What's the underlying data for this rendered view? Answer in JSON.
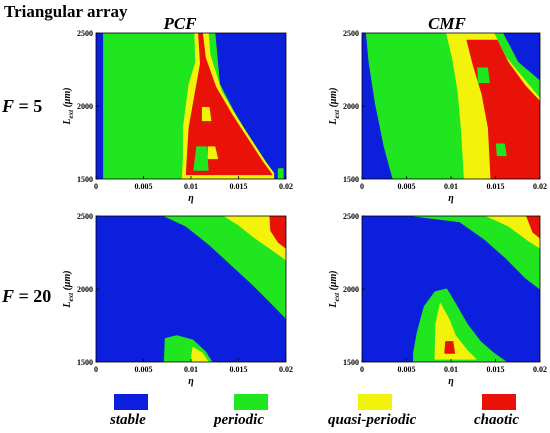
{
  "header": {
    "title": "Triangular array"
  },
  "columns": [
    "PCF",
    "CMF"
  ],
  "rows": [
    {
      "label_prefix": "F",
      "label_eq": " = ",
      "label_value": "5"
    },
    {
      "label_prefix": "F",
      "label_eq": " = ",
      "label_value": "20"
    }
  ],
  "colors": {
    "stable": "#0b1fdc",
    "periodic": "#1fe61f",
    "quasi_periodic": "#f2f20a",
    "chaotic": "#e81208",
    "grid": "#000000"
  },
  "legend": [
    {
      "key": "stable",
      "label": "stable",
      "color": "#0b1fdc"
    },
    {
      "key": "periodic",
      "label": "periodic",
      "color": "#1fe61f"
    },
    {
      "key": "quasi_periodic",
      "label": "quasi-periodic",
      "color": "#f2f20a"
    },
    {
      "key": "chaotic",
      "label": "chaotic",
      "color": "#e81208"
    }
  ],
  "chart_data": [
    {
      "type": "heatmap",
      "column": "PCF",
      "row": "F = 5",
      "xlabel": "η",
      "ylabel_main": "L",
      "ylabel_sub": "ext",
      "ylabel_unit": " (μm)",
      "xlim": [
        0,
        0.02
      ],
      "ylim": [
        1500,
        2500
      ],
      "xticks": [
        "0",
        "0.005",
        "0.01",
        "0.015",
        "0.02"
      ],
      "yticks": [
        "1500",
        "2000",
        "2500"
      ],
      "regions": [
        {
          "state": "stable",
          "polygon": [
            [
              0,
              1500
            ],
            [
              0.02,
              1500
            ],
            [
              0.02,
              2500
            ],
            [
              0,
              2500
            ]
          ]
        },
        {
          "state": "periodic",
          "polygon": [
            [
              0.0008,
              1500
            ],
            [
              0.0187,
              1500
            ],
            [
              0.0187,
              1540
            ],
            [
              0.0178,
              1620
            ],
            [
              0.016,
              1800
            ],
            [
              0.0145,
              1960
            ],
            [
              0.013,
              2150
            ],
            [
              0.0125,
              2500
            ],
            [
              0.0008,
              2500
            ]
          ]
        },
        {
          "state": "periodic",
          "polygon": [
            [
              0.0192,
              1500
            ],
            [
              0.0197,
              1500
            ],
            [
              0.0197,
              1570
            ],
            [
              0.0192,
              1570
            ]
          ]
        },
        {
          "state": "quasi_periodic",
          "polygon": [
            [
              0.0091,
              1500
            ],
            [
              0.0187,
              1500
            ],
            [
              0.0187,
              1540
            ],
            [
              0.0178,
              1620
            ],
            [
              0.016,
              1800
            ],
            [
              0.015,
              1900
            ],
            [
              0.0132,
              2100
            ],
            [
              0.012,
              2350
            ],
            [
              0.0118,
              2500
            ],
            [
              0.0104,
              2500
            ],
            [
              0.0105,
              2300
            ],
            [
              0.0098,
              2150
            ],
            [
              0.0092,
              1850
            ],
            [
              0.0092,
              1650
            ]
          ]
        },
        {
          "state": "chaotic",
          "polygon": [
            [
              0.0095,
              1530
            ],
            [
              0.0185,
              1530
            ],
            [
              0.0175,
              1620
            ],
            [
              0.0158,
              1790
            ],
            [
              0.0144,
              1930
            ],
            [
              0.0126,
              2130
            ],
            [
              0.0115,
              2330
            ],
            [
              0.0112,
              2500
            ],
            [
              0.0108,
              2500
            ],
            [
              0.011,
              2290
            ],
            [
              0.0105,
              2110
            ],
            [
              0.0098,
              1850
            ],
            [
              0.0096,
              1640
            ]
          ]
        },
        {
          "state": "periodic",
          "polygon": [
            [
              0.0103,
              1560
            ],
            [
              0.0118,
              1560
            ],
            [
              0.0116,
              1720
            ],
            [
              0.0106,
              1720
            ]
          ]
        },
        {
          "state": "quasi_periodic",
          "polygon": [
            [
              0.0118,
              1640
            ],
            [
              0.0128,
              1640
            ],
            [
              0.0125,
              1720
            ],
            [
              0.0118,
              1720
            ]
          ]
        },
        {
          "state": "chaotic",
          "polygon": [
            [
              0.0127,
              1780
            ],
            [
              0.0136,
              1780
            ],
            [
              0.0133,
              1860
            ],
            [
              0.0126,
              1860
            ]
          ]
        },
        {
          "state": "quasi_periodic",
          "polygon": [
            [
              0.0112,
              1900
            ],
            [
              0.0121,
              1900
            ],
            [
              0.0119,
              1990
            ],
            [
              0.0112,
              1990
            ]
          ]
        }
      ]
    },
    {
      "type": "heatmap",
      "column": "CMF",
      "row": "F = 5",
      "xlabel": "η",
      "ylabel_main": "L",
      "ylabel_sub": "ext",
      "ylabel_unit": " (μm)",
      "xlim": [
        0,
        0.02
      ],
      "ylim": [
        1500,
        2500
      ],
      "xticks": [
        "0",
        "0.005",
        "0.01",
        "0.015",
        "0.02"
      ],
      "yticks": [
        "1500",
        "2000",
        "2500"
      ],
      "regions": [
        {
          "state": "stable",
          "polygon": [
            [
              0,
              1500
            ],
            [
              0.02,
              1500
            ],
            [
              0.02,
              2500
            ],
            [
              0,
              2500
            ]
          ]
        },
        {
          "state": "periodic",
          "polygon": [
            [
              0.0035,
              1500
            ],
            [
              0.02,
              1500
            ],
            [
              0.02,
              2170
            ],
            [
              0.0175,
              2300
            ],
            [
              0.0158,
              2500
            ],
            [
              0.0005,
              2500
            ],
            [
              0.0008,
              2300
            ],
            [
              0.0015,
              2020
            ],
            [
              0.0025,
              1720
            ]
          ]
        },
        {
          "state": "quasi_periodic",
          "polygon": [
            [
              0.0115,
              1500
            ],
            [
              0.02,
              1500
            ],
            [
              0.02,
              2050
            ],
            [
              0.0185,
              2160
            ],
            [
              0.0162,
              2330
            ],
            [
              0.0148,
              2500
            ],
            [
              0.0095,
              2500
            ],
            [
              0.0102,
              2320
            ],
            [
              0.0108,
              2100
            ],
            [
              0.0112,
              1820
            ]
          ]
        },
        {
          "state": "chaotic",
          "polygon": [
            [
              0.0145,
              1500
            ],
            [
              0.02,
              1500
            ],
            [
              0.02,
              2030
            ],
            [
              0.0183,
              2140
            ],
            [
              0.0164,
              2300
            ],
            [
              0.0152,
              2450
            ],
            [
              0.0118,
              2450
            ],
            [
              0.0125,
              2280
            ],
            [
              0.0135,
              2080
            ],
            [
              0.0142,
              1850
            ]
          ]
        },
        {
          "state": "periodic",
          "polygon": [
            [
              0.0131,
              2160
            ],
            [
              0.0143,
              2160
            ],
            [
              0.0141,
              2260
            ],
            [
              0.013,
              2260
            ]
          ]
        },
        {
          "state": "quasi_periodic",
          "polygon": [
            [
              0.0128,
              1880
            ],
            [
              0.0138,
              1880
            ],
            [
              0.0136,
              1960
            ],
            [
              0.0127,
              1960
            ]
          ]
        },
        {
          "state": "periodic",
          "polygon": [
            [
              0.0152,
              1660
            ],
            [
              0.0162,
              1660
            ],
            [
              0.016,
              1740
            ],
            [
              0.0151,
              1740
            ]
          ]
        }
      ]
    },
    {
      "type": "heatmap",
      "column": "PCF",
      "row": "F = 20",
      "xlabel": "η",
      "ylabel_main": "L",
      "ylabel_sub": "ext",
      "ylabel_unit": " (μm)",
      "xlim": [
        0,
        0.02
      ],
      "ylim": [
        1500,
        2500
      ],
      "xticks": [
        "0",
        "0.005",
        "0.01",
        "0.015",
        "0.02"
      ],
      "yticks": [
        "1500",
        "2000",
        "2500"
      ],
      "regions": [
        {
          "state": "stable",
          "polygon": [
            [
              0,
              1500
            ],
            [
              0.02,
              1500
            ],
            [
              0.02,
              2500
            ],
            [
              0,
              2500
            ]
          ]
        },
        {
          "state": "periodic",
          "polygon": [
            [
              0.0072,
              2500
            ],
            [
              0.02,
              2500
            ],
            [
              0.02,
              1800
            ],
            [
              0.0185,
              1900
            ],
            [
              0.0165,
              2030
            ],
            [
              0.0145,
              2150
            ],
            [
              0.012,
              2300
            ],
            [
              0.0095,
              2430
            ]
          ]
        },
        {
          "state": "quasi_periodic",
          "polygon": [
            [
              0.0135,
              2500
            ],
            [
              0.02,
              2500
            ],
            [
              0.02,
              2200
            ],
            [
              0.0185,
              2270
            ],
            [
              0.0165,
              2360
            ],
            [
              0.015,
              2440
            ]
          ]
        },
        {
          "state": "chaotic",
          "polygon": [
            [
              0.0183,
              2500
            ],
            [
              0.02,
              2500
            ],
            [
              0.02,
              2280
            ],
            [
              0.0192,
              2320
            ],
            [
              0.0184,
              2400
            ]
          ]
        },
        {
          "state": "periodic",
          "polygon": [
            [
              0.0072,
              1500
            ],
            [
              0.0122,
              1500
            ],
            [
              0.0115,
              1570
            ],
            [
              0.0102,
              1650
            ],
            [
              0.0085,
              1680
            ],
            [
              0.0073,
              1660
            ]
          ]
        },
        {
          "state": "quasi_periodic",
          "polygon": [
            [
              0.01,
              1500
            ],
            [
              0.0118,
              1500
            ],
            [
              0.0112,
              1560
            ],
            [
              0.0102,
              1600
            ]
          ]
        }
      ]
    },
    {
      "type": "heatmap",
      "column": "CMF",
      "row": "F = 20",
      "xlabel": "η",
      "ylabel_main": "L",
      "ylabel_sub": "ext",
      "ylabel_unit": " (μm)",
      "xlim": [
        0,
        0.02
      ],
      "ylim": [
        1500,
        2500
      ],
      "xticks": [
        "0",
        "0.005",
        "0.01",
        "0.015",
        "0.02"
      ],
      "yticks": [
        "1500",
        "2000",
        "2500"
      ],
      "regions": [
        {
          "state": "stable",
          "polygon": [
            [
              0,
              1500
            ],
            [
              0.02,
              1500
            ],
            [
              0.02,
              2500
            ],
            [
              0,
              2500
            ]
          ]
        },
        {
          "state": "periodic",
          "polygon": [
            [
              0.0058,
              2500
            ],
            [
              0.02,
              2500
            ],
            [
              0.02,
              2000
            ],
            [
              0.0183,
              2080
            ],
            [
              0.0162,
              2210
            ],
            [
              0.0138,
              2340
            ],
            [
              0.011,
              2460
            ]
          ]
        },
        {
          "state": "quasi_periodic",
          "polygon": [
            [
              0.014,
              2500
            ],
            [
              0.02,
              2500
            ],
            [
              0.02,
              2280
            ],
            [
              0.0185,
              2340
            ],
            [
              0.0165,
              2430
            ]
          ]
        },
        {
          "state": "chaotic",
          "polygon": [
            [
              0.0185,
              2500
            ],
            [
              0.02,
              2500
            ],
            [
              0.02,
              2350
            ],
            [
              0.0192,
              2390
            ]
          ]
        },
        {
          "state": "periodic",
          "polygon": [
            [
              0.0058,
              1500
            ],
            [
              0.0162,
              1500
            ],
            [
              0.0148,
              1560
            ],
            [
              0.0133,
              1640
            ],
            [
              0.0118,
              1760
            ],
            [
              0.0105,
              1900
            ],
            [
              0.0095,
              2000
            ],
            [
              0.0082,
              1980
            ],
            [
              0.007,
              1880
            ],
            [
              0.0062,
              1700
            ],
            [
              0.0058,
              1560
            ]
          ]
        },
        {
          "state": "quasi_periodic",
          "polygon": [
            [
              0.0082,
              1520
            ],
            [
              0.0128,
              1520
            ],
            [
              0.0118,
              1580
            ],
            [
              0.0105,
              1680
            ],
            [
              0.0098,
              1790
            ],
            [
              0.0088,
              1900
            ],
            [
              0.0083,
              1760
            ]
          ]
        },
        {
          "state": "chaotic",
          "polygon": [
            [
              0.0093,
              1560
            ],
            [
              0.0104,
              1560
            ],
            [
              0.0102,
              1640
            ],
            [
              0.0094,
              1640
            ]
          ]
        }
      ]
    }
  ]
}
